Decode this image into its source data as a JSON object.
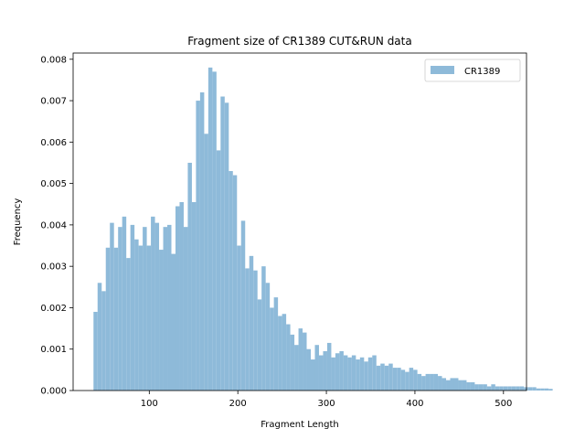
{
  "chart_data": {
    "type": "bar",
    "title": "Fragment size of CR1389 CUT&RUN data",
    "xlabel": "Fragment Length",
    "ylabel": "Frequency",
    "xlim": [
      14,
      526
    ],
    "ylim": [
      0,
      0.00815
    ],
    "x_ticks": [
      100,
      200,
      300,
      400,
      500
    ],
    "x_tick_labels": [
      "100",
      "200",
      "300",
      "400",
      "500"
    ],
    "y_ticks": [
      0,
      0.001,
      0.002,
      0.003,
      0.004,
      0.005,
      0.006,
      0.007,
      0.008
    ],
    "y_tick_labels": [
      "0.000",
      "0.001",
      "0.002",
      "0.003",
      "0.004",
      "0.005",
      "0.006",
      "0.007",
      "0.008"
    ],
    "legend_position": "top-right",
    "series": [
      {
        "name": "CR1389",
        "color": "#8ebad9",
        "bin_edges_start": 37,
        "bin_width": 4.63,
        "values": [
          0.0019,
          0.0026,
          0.0024,
          0.00345,
          0.00405,
          0.00345,
          0.00395,
          0.0042,
          0.0032,
          0.004,
          0.00365,
          0.0035,
          0.00395,
          0.0035,
          0.0042,
          0.00405,
          0.0034,
          0.00395,
          0.004,
          0.0033,
          0.00445,
          0.00455,
          0.00395,
          0.0055,
          0.00455,
          0.007,
          0.0072,
          0.0062,
          0.0078,
          0.0077,
          0.0058,
          0.0071,
          0.00695,
          0.0053,
          0.0052,
          0.0035,
          0.0041,
          0.00295,
          0.00325,
          0.0029,
          0.0022,
          0.003,
          0.0026,
          0.002,
          0.00225,
          0.0018,
          0.00185,
          0.0016,
          0.00135,
          0.0011,
          0.0015,
          0.0014,
          0.001,
          0.00075,
          0.0011,
          0.00085,
          0.00095,
          0.00115,
          0.0008,
          0.0009,
          0.00095,
          0.00085,
          0.0008,
          0.00085,
          0.00075,
          0.0008,
          0.0007,
          0.0008,
          0.00085,
          0.0006,
          0.00065,
          0.0006,
          0.00065,
          0.00055,
          0.00055,
          0.0005,
          0.00045,
          0.00055,
          0.0005,
          0.0004,
          0.00035,
          0.0004,
          0.0004,
          0.0004,
          0.00035,
          0.0003,
          0.00025,
          0.0003,
          0.0003,
          0.00025,
          0.00025,
          0.0002,
          0.0002,
          0.00015,
          0.00015,
          0.00015,
          0.0001,
          0.00015,
          0.0001,
          0.0001,
          0.0001,
          0.0001,
          0.0001,
          0.0001,
          0.0001,
          8e-05,
          8e-05,
          8e-05,
          5e-05,
          5e-05,
          5e-05,
          4e-05
        ]
      }
    ]
  }
}
